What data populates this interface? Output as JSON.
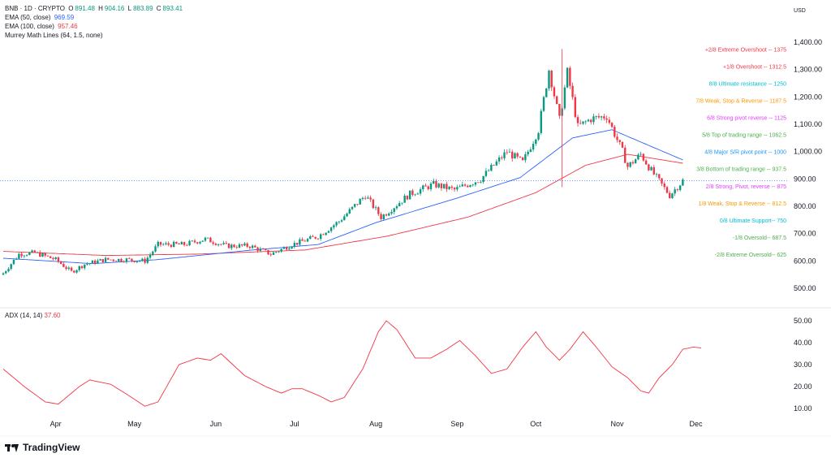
{
  "header": {
    "symbol_line": {
      "symbol": "BNB · 1D · CRYPTO",
      "o_label": "O",
      "o": "891.48",
      "h_label": "H",
      "h": "904.16",
      "l_label": "L",
      "l": "883.89",
      "c_label": "C",
      "c": "893.41"
    },
    "ema50": {
      "label": "EMA (50, close)",
      "value": "969.59",
      "color": "#2962ff"
    },
    "ema100": {
      "label": "EMA (100, close)",
      "value": "957.46",
      "color": "#f23645"
    },
    "murrey": {
      "label": "Murrey Math Lines (64, 1.5, none)"
    }
  },
  "currency": "USD",
  "adx": {
    "label": "ADX (14, 14)",
    "value": "37.60",
    "color": "#f23645"
  },
  "brand": "TradingView",
  "price_axis": [
    "1,400.00",
    "1,300.00",
    "1,200.00",
    "1,100.00",
    "1,000.00",
    "900.00",
    "800.00",
    "700.00",
    "600.00",
    "500.00"
  ],
  "adx_axis": [
    "50.00",
    "40.00",
    "30.00",
    "20.00",
    "10.00"
  ],
  "murrey_lines": [
    {
      "text": "+2/8 Extreme Overshoot -- 1375",
      "value": 1375,
      "color": "#f23645"
    },
    {
      "text": "+1/8 Overshoot -- 1312.5",
      "value": 1312.5,
      "color": "#f23645"
    },
    {
      "text": "8/8 Ultimate resistance -- 1250",
      "value": 1250,
      "color": "#00bcd4"
    },
    {
      "text": "7/8 Weak, Stop & Reverse -- 1187.5",
      "value": 1187.5,
      "color": "#ff9800"
    },
    {
      "text": "6/8 Strong pivot reverse -- 1125",
      "value": 1125,
      "color": "#e040fb"
    },
    {
      "text": "5/8 Top of trading range -- 1062.5",
      "value": 1062.5,
      "color": "#4caf50"
    },
    {
      "text": "4/8 Major S/R pivot point -- 1000",
      "value": 1000,
      "color": "#2196f3"
    },
    {
      "text": "3/8 Bottom of trading range -- 937.5",
      "value": 937.5,
      "color": "#4caf50"
    },
    {
      "text": "2/8 Strong, Pivot, reverse -- 875",
      "value": 875,
      "color": "#e040fb"
    },
    {
      "text": "1/8 Weak, Stop & Reverse -- 812.5",
      "value": 812.5,
      "color": "#ff9800"
    },
    {
      "text": "0/8 Ultimate Support-- 750",
      "value": 750,
      "color": "#00bcd4"
    },
    {
      "text": "-1/8 Oversold-- 687.5",
      "value": 687.5,
      "color": "#4caf50"
    },
    {
      "text": "-2/8 Extreme Oversold-- 625",
      "value": 625,
      "color": "#4caf50"
    }
  ],
  "chart_data": {
    "type": "candlestick",
    "up_color": "#089981",
    "down_color": "#f23645",
    "time_labels": [
      "Apr",
      "May",
      "Jun",
      "Jul",
      "Aug",
      "Sep",
      "Oct",
      "Nov",
      "Dec"
    ],
    "ylim": [
      450,
      1420
    ],
    "adx_ylim": [
      5,
      55
    ],
    "grid": false,
    "last_price": 893.41,
    "ohlc_anchors": [
      {
        "date": "2025-03-12",
        "close": 555
      },
      {
        "date": "2025-03-18",
        "close": 625
      },
      {
        "date": "2025-03-24",
        "close": 630
      },
      {
        "date": "2025-04-01",
        "close": 605
      },
      {
        "date": "2025-04-07",
        "close": 560
      },
      {
        "date": "2025-04-12",
        "close": 588
      },
      {
        "date": "2025-04-20",
        "close": 605
      },
      {
        "date": "2025-04-28",
        "close": 605
      },
      {
        "date": "2025-05-05",
        "close": 600
      },
      {
        "date": "2025-05-10",
        "close": 660
      },
      {
        "date": "2025-05-20",
        "close": 660
      },
      {
        "date": "2025-05-28",
        "close": 680
      },
      {
        "date": "2025-06-05",
        "close": 655
      },
      {
        "date": "2025-06-14",
        "close": 655
      },
      {
        "date": "2025-06-22",
        "close": 625
      },
      {
        "date": "2025-06-30",
        "close": 660
      },
      {
        "date": "2025-07-10",
        "close": 690
      },
      {
        "date": "2025-07-18",
        "close": 745
      },
      {
        "date": "2025-07-28",
        "close": 840
      },
      {
        "date": "2025-08-03",
        "close": 760
      },
      {
        "date": "2025-08-14",
        "close": 845
      },
      {
        "date": "2025-08-23",
        "close": 880
      },
      {
        "date": "2025-08-31",
        "close": 860
      },
      {
        "date": "2025-09-10",
        "close": 900
      },
      {
        "date": "2025-09-20",
        "close": 1000
      },
      {
        "date": "2025-09-26",
        "close": 960
      },
      {
        "date": "2025-10-02",
        "close": 1080
      },
      {
        "date": "2025-10-06",
        "close": 1300
      },
      {
        "date": "2025-10-10",
        "close": 1115
      },
      {
        "date": "2025-10-13",
        "close": 1290
      },
      {
        "date": "2025-10-17",
        "close": 1090
      },
      {
        "date": "2025-10-22",
        "close": 1120
      },
      {
        "date": "2025-10-28",
        "close": 1130
      },
      {
        "date": "2025-11-03",
        "close": 1000
      },
      {
        "date": "2025-11-05",
        "close": 945
      },
      {
        "date": "2025-11-10",
        "close": 990
      },
      {
        "date": "2025-11-14",
        "close": 930
      },
      {
        "date": "2025-11-21",
        "close": 840
      },
      {
        "date": "2025-11-26",
        "close": 893.41
      }
    ],
    "ema50_points": [
      {
        "date": "2025-03-12",
        "value": 610
      },
      {
        "date": "2025-04-15",
        "value": 590
      },
      {
        "date": "2025-05-10",
        "value": 605
      },
      {
        "date": "2025-06-15",
        "value": 640
      },
      {
        "date": "2025-07-10",
        "value": 660
      },
      {
        "date": "2025-08-01",
        "value": 740
      },
      {
        "date": "2025-09-01",
        "value": 830
      },
      {
        "date": "2025-09-25",
        "value": 905
      },
      {
        "date": "2025-10-15",
        "value": 1050
      },
      {
        "date": "2025-10-30",
        "value": 1080
      },
      {
        "date": "2025-11-26",
        "value": 969.59
      }
    ],
    "ema100_points": [
      {
        "date": "2025-03-12",
        "value": 635
      },
      {
        "date": "2025-04-20",
        "value": 620
      },
      {
        "date": "2025-05-25",
        "value": 625
      },
      {
        "date": "2025-07-05",
        "value": 640
      },
      {
        "date": "2025-08-05",
        "value": 690
      },
      {
        "date": "2025-09-05",
        "value": 760
      },
      {
        "date": "2025-10-01",
        "value": 850
      },
      {
        "date": "2025-10-20",
        "value": 950
      },
      {
        "date": "2025-11-05",
        "value": 990
      },
      {
        "date": "2025-11-26",
        "value": 957.46
      }
    ],
    "adx_points": [
      {
        "date": "2025-03-12",
        "value": 28
      },
      {
        "date": "2025-03-20",
        "value": 20
      },
      {
        "date": "2025-03-28",
        "value": 13
      },
      {
        "date": "2025-04-02",
        "value": 12
      },
      {
        "date": "2025-04-10",
        "value": 20
      },
      {
        "date": "2025-04-14",
        "value": 23
      },
      {
        "date": "2025-04-22",
        "value": 21
      },
      {
        "date": "2025-04-30",
        "value": 15
      },
      {
        "date": "2025-05-05",
        "value": 11
      },
      {
        "date": "2025-05-10",
        "value": 13
      },
      {
        "date": "2025-05-18",
        "value": 30
      },
      {
        "date": "2025-05-25",
        "value": 33
      },
      {
        "date": "2025-05-30",
        "value": 32
      },
      {
        "date": "2025-06-03",
        "value": 35
      },
      {
        "date": "2025-06-12",
        "value": 25
      },
      {
        "date": "2025-06-20",
        "value": 20
      },
      {
        "date": "2025-06-26",
        "value": 17
      },
      {
        "date": "2025-06-30",
        "value": 19
      },
      {
        "date": "2025-07-04",
        "value": 19
      },
      {
        "date": "2025-07-10",
        "value": 16
      },
      {
        "date": "2025-07-15",
        "value": 13
      },
      {
        "date": "2025-07-20",
        "value": 15
      },
      {
        "date": "2025-07-27",
        "value": 28
      },
      {
        "date": "2025-08-02",
        "value": 45
      },
      {
        "date": "2025-08-05",
        "value": 50
      },
      {
        "date": "2025-08-09",
        "value": 46
      },
      {
        "date": "2025-08-16",
        "value": 33
      },
      {
        "date": "2025-08-22",
        "value": 33
      },
      {
        "date": "2025-08-28",
        "value": 37
      },
      {
        "date": "2025-09-02",
        "value": 41
      },
      {
        "date": "2025-09-08",
        "value": 34
      },
      {
        "date": "2025-09-14",
        "value": 26
      },
      {
        "date": "2025-09-20",
        "value": 28
      },
      {
        "date": "2025-09-26",
        "value": 38
      },
      {
        "date": "2025-10-01",
        "value": 45
      },
      {
        "date": "2025-10-05",
        "value": 38
      },
      {
        "date": "2025-10-10",
        "value": 32
      },
      {
        "date": "2025-10-14",
        "value": 37
      },
      {
        "date": "2025-10-19",
        "value": 45
      },
      {
        "date": "2025-10-24",
        "value": 38
      },
      {
        "date": "2025-10-30",
        "value": 29
      },
      {
        "date": "2025-11-05",
        "value": 24
      },
      {
        "date": "2025-11-10",
        "value": 18
      },
      {
        "date": "2025-11-13",
        "value": 17
      },
      {
        "date": "2025-11-17",
        "value": 24
      },
      {
        "date": "2025-11-22",
        "value": 30
      },
      {
        "date": "2025-11-26",
        "value": 37
      },
      {
        "date": "2025-11-30",
        "value": 38
      },
      {
        "date": "2025-12-03",
        "value": 37.6
      }
    ]
  }
}
